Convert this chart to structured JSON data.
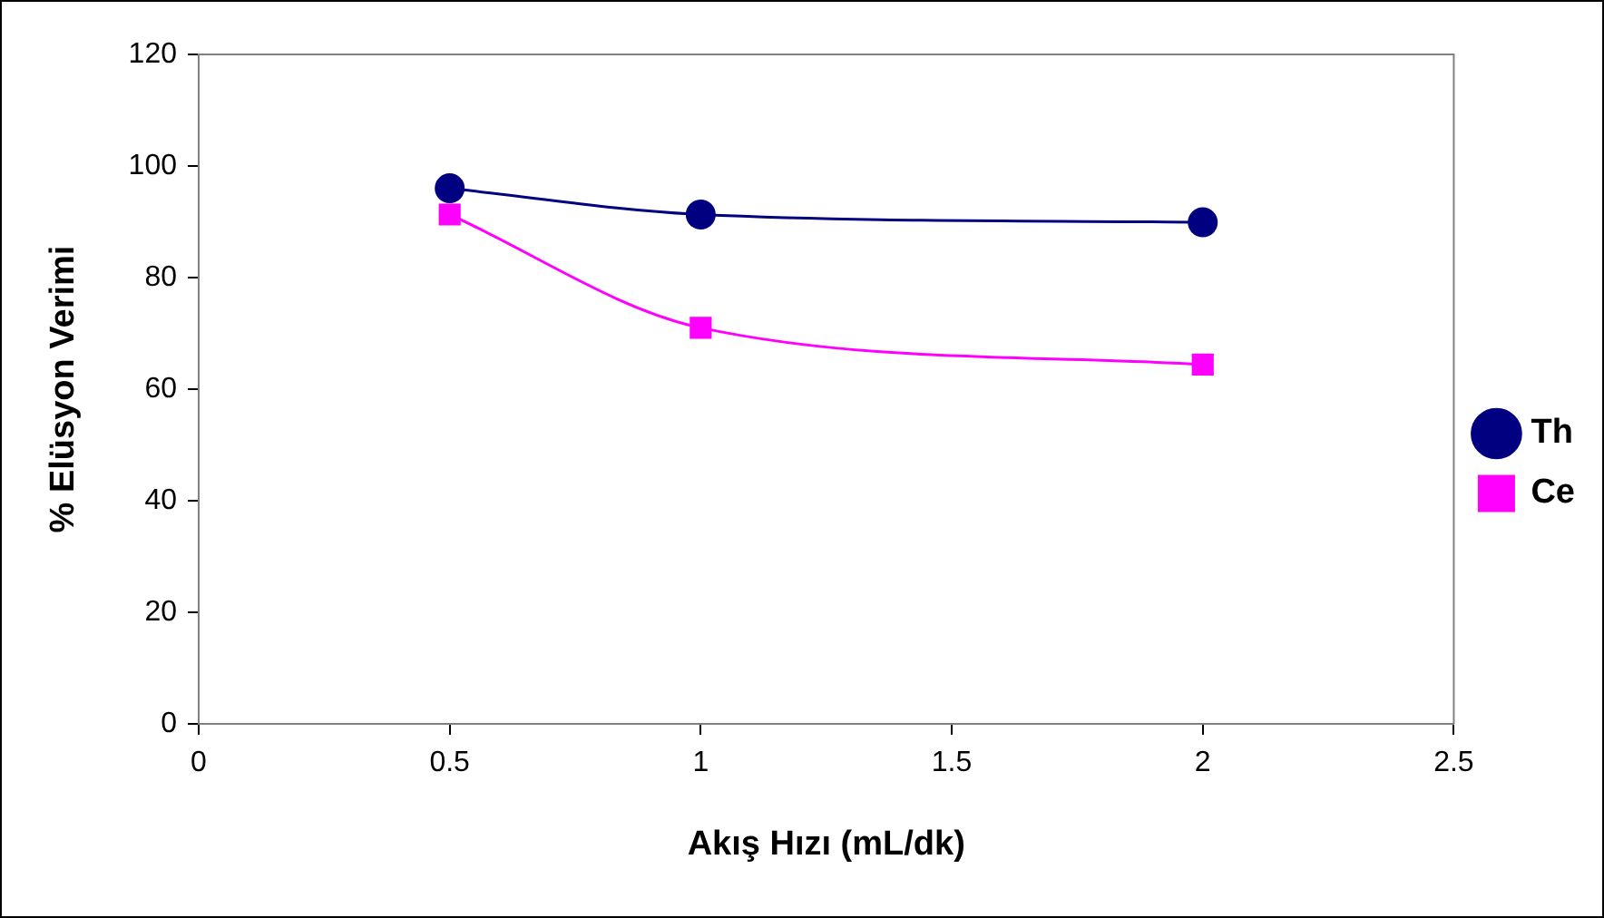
{
  "chart_data": {
    "type": "line",
    "xlabel": "Akış Hızı (mL/dk)",
    "ylabel": "% Elüsyon Verimi",
    "x": [
      0.5,
      1,
      2
    ],
    "series": [
      {
        "name": "Th",
        "color": "#000080",
        "values": [
          96,
          91.3,
          89.9
        ],
        "marker": "circle"
      },
      {
        "name": "Ce",
        "color": "#ff00ff",
        "values": [
          91.3,
          71,
          64.4
        ],
        "marker": "square"
      }
    ],
    "xlim": [
      0,
      2.5
    ],
    "xticks": [
      0,
      0.5,
      1,
      1.5,
      2,
      2.5
    ],
    "ylim": [
      0,
      120
    ],
    "yticks": [
      0,
      20,
      40,
      60,
      80,
      100,
      120
    ],
    "grid": false,
    "legend": "right",
    "line_style": "solid"
  }
}
